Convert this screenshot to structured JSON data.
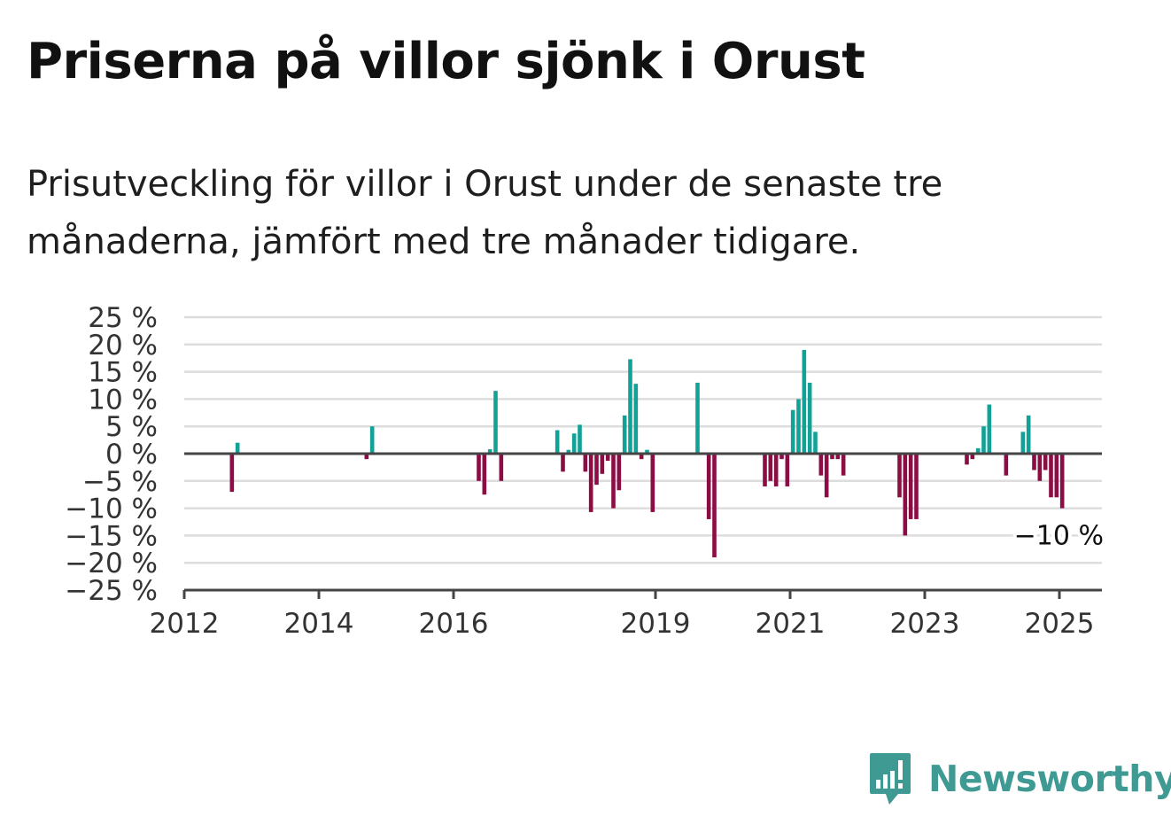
{
  "title": "Priserna på villor sjönk i Orust",
  "subtitle": "Prisutveckling för villor i Orust under de senaste tre månaderna, jämfört med tre månader tidigare.",
  "brand": {
    "name": "Newsworthy",
    "color": "#3f9a94",
    "icon": "newsworthy-logo-icon"
  },
  "colors": {
    "positive": "#12a197",
    "negative": "#8c0c44",
    "grid": "#dddddd",
    "axis": "#444444"
  },
  "chart_data": {
    "type": "bar",
    "title": "Priserna på villor sjönk i Orust",
    "ylim": [
      -25,
      25
    ],
    "yticks": [
      25,
      20,
      15,
      10,
      5,
      0,
      -5,
      -10,
      -15,
      -20,
      -25
    ],
    "ytick_labels": [
      "25 %",
      "20 %",
      "15 %",
      "10 %",
      "5 %",
      "0 %",
      "−5 %",
      "−10 %",
      "−15 %",
      "−20 %",
      "−25 %"
    ],
    "xlim": [
      "2012-01",
      "2025-08"
    ],
    "xticks": [
      "2012",
      "2014",
      "2016",
      "2019",
      "2021",
      "2023",
      "2025"
    ],
    "grid": true,
    "last_value_label": "−10 %",
    "data": [
      {
        "x": "2012-09",
        "y": -7
      },
      {
        "x": "2012-10",
        "y": 2
      },
      {
        "x": "2014-09",
        "y": -1
      },
      {
        "x": "2014-10",
        "y": 5
      },
      {
        "x": "2016-05",
        "y": -5
      },
      {
        "x": "2016-06",
        "y": -7.5
      },
      {
        "x": "2016-07",
        "y": 0.8
      },
      {
        "x": "2016-08",
        "y": 11.5
      },
      {
        "x": "2016-09",
        "y": -5
      },
      {
        "x": "2017-07",
        "y": 4.3
      },
      {
        "x": "2017-08",
        "y": -3.3
      },
      {
        "x": "2017-09",
        "y": 0.7
      },
      {
        "x": "2017-10",
        "y": 3.7
      },
      {
        "x": "2017-11",
        "y": 5.3
      },
      {
        "x": "2017-12",
        "y": -3.3
      },
      {
        "x": "2018-01",
        "y": -10.7
      },
      {
        "x": "2018-02",
        "y": -5.7
      },
      {
        "x": "2018-03",
        "y": -3.7
      },
      {
        "x": "2018-04",
        "y": -1.3
      },
      {
        "x": "2018-05",
        "y": -10
      },
      {
        "x": "2018-06",
        "y": -6.7
      },
      {
        "x": "2018-07",
        "y": 7
      },
      {
        "x": "2018-08",
        "y": 17.3
      },
      {
        "x": "2018-09",
        "y": 12.8
      },
      {
        "x": "2018-10",
        "y": -1
      },
      {
        "x": "2018-11",
        "y": 0.7
      },
      {
        "x": "2018-12",
        "y": -10.7
      },
      {
        "x": "2019-08",
        "y": 13
      },
      {
        "x": "2019-10",
        "y": -12
      },
      {
        "x": "2019-11",
        "y": -19
      },
      {
        "x": "2020-08",
        "y": -6
      },
      {
        "x": "2020-09",
        "y": -5
      },
      {
        "x": "2020-10",
        "y": -6
      },
      {
        "x": "2020-11",
        "y": -1
      },
      {
        "x": "2020-12",
        "y": -6
      },
      {
        "x": "2021-01",
        "y": 8
      },
      {
        "x": "2021-02",
        "y": 10
      },
      {
        "x": "2021-03",
        "y": 19
      },
      {
        "x": "2021-04",
        "y": 13
      },
      {
        "x": "2021-05",
        "y": 4
      },
      {
        "x": "2021-06",
        "y": -4
      },
      {
        "x": "2021-07",
        "y": -8
      },
      {
        "x": "2021-08",
        "y": -1
      },
      {
        "x": "2021-09",
        "y": -1
      },
      {
        "x": "2021-10",
        "y": -4
      },
      {
        "x": "2022-08",
        "y": -8
      },
      {
        "x": "2022-09",
        "y": -15
      },
      {
        "x": "2022-10",
        "y": -12
      },
      {
        "x": "2022-11",
        "y": -12
      },
      {
        "x": "2023-08",
        "y": -2
      },
      {
        "x": "2023-09",
        "y": -1
      },
      {
        "x": "2023-10",
        "y": 1
      },
      {
        "x": "2023-11",
        "y": 5
      },
      {
        "x": "2023-12",
        "y": 9
      },
      {
        "x": "2024-03",
        "y": -4
      },
      {
        "x": "2024-06",
        "y": 4
      },
      {
        "x": "2024-07",
        "y": 7
      },
      {
        "x": "2024-08",
        "y": -3
      },
      {
        "x": "2024-09",
        "y": -5
      },
      {
        "x": "2024-10",
        "y": -3
      },
      {
        "x": "2024-11",
        "y": -8
      },
      {
        "x": "2024-12",
        "y": -8
      },
      {
        "x": "2025-01",
        "y": -10
      }
    ]
  }
}
